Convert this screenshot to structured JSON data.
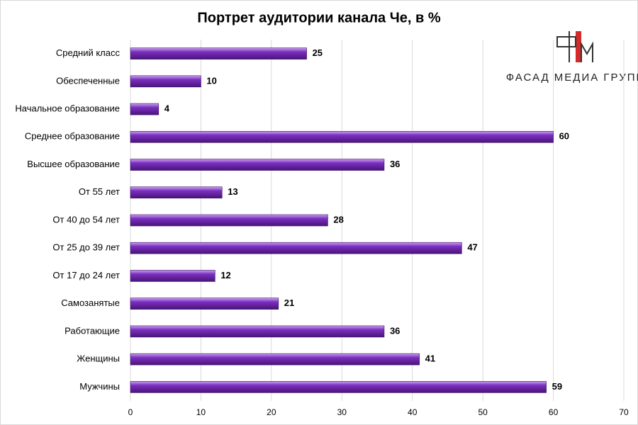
{
  "chart_data": {
    "type": "bar",
    "orientation": "horizontal",
    "title": "Портрет аудитории канала Че, в %",
    "logo_text": "ФАСАД МЕДИА ГРУПП",
    "categories": [
      "Средний класс",
      "Обеспеченные",
      "Начальное образование",
      "Среднее образование",
      "Высшее образование",
      "От 55 лет",
      "От 40 до 54 лет",
      "От 25 до 39 лет",
      "От 17 до 24 лет",
      "Самозанятые",
      "Работающие",
      "Женщины",
      "Мужчины"
    ],
    "values": [
      25,
      10,
      4,
      60,
      36,
      13,
      28,
      47,
      12,
      21,
      36,
      41,
      59
    ],
    "color": "#7b2fc0",
    "xlim": [
      0,
      70
    ],
    "xticks": [
      0,
      10,
      20,
      30,
      40,
      50,
      60,
      70
    ],
    "grid": true
  }
}
